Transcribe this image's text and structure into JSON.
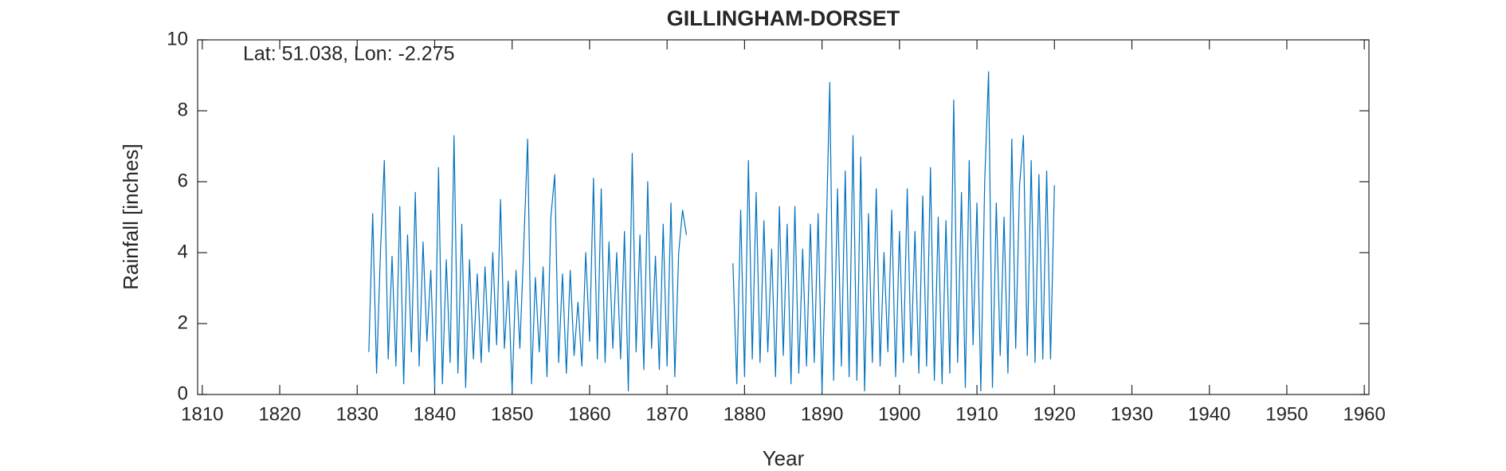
{
  "chart_data": {
    "type": "line",
    "title": "GILLINGHAM-DORSET",
    "annotation": "Lat: 51.038, Lon: -2.275",
    "x_label": "Year",
    "y_label": "Rainfall [inches]",
    "color": "#0072bd",
    "xlim": [
      1809.4,
      1960.6
    ],
    "ylim": [
      0,
      10
    ],
    "xticks": [
      1810,
      1820,
      1830,
      1840,
      1850,
      1860,
      1870,
      1880,
      1890,
      1900,
      1910,
      1920,
      1930,
      1940,
      1950,
      1960
    ],
    "yticks": [
      0,
      2,
      4,
      6,
      8,
      10
    ],
    "x": [
      1831.5,
      1832,
      1832.5,
      1833,
      1833.5,
      1834,
      1834.5,
      1835,
      1835.5,
      1836,
      1836.5,
      1837,
      1837.5,
      1838,
      1838.5,
      1839,
      1839.5,
      1840,
      1840.5,
      1841,
      1841.5,
      1842,
      1842.5,
      1843,
      1843.5,
      1844,
      1844.5,
      1845,
      1845.5,
      1846,
      1846.5,
      1847,
      1847.5,
      1848,
      1848.5,
      1849,
      1849.5,
      1850,
      1850.5,
      1851,
      1851.5,
      1852,
      1852.5,
      1853,
      1853.5,
      1854,
      1854.5,
      1855,
      1855.5,
      1856,
      1856.5,
      1857,
      1857.5,
      1858,
      1858.5,
      1859,
      1859.5,
      1860,
      1860.5,
      1861,
      1861.5,
      1862,
      1862.5,
      1863,
      1863.5,
      1864,
      1864.5,
      1865,
      1865.5,
      1866,
      1866.5,
      1867,
      1867.5,
      1868,
      1868.5,
      1869,
      1869.5,
      1870,
      1870.5,
      1871,
      1871.5,
      1872,
      1872.5,
      1875,
      1878.5,
      1879,
      1879.5,
      1880,
      1880.5,
      1881,
      1881.5,
      1882,
      1882.5,
      1883,
      1883.5,
      1884,
      1884.5,
      1885,
      1885.5,
      1886,
      1886.5,
      1887,
      1887.5,
      1888,
      1888.5,
      1889,
      1889.5,
      1890,
      1890.5,
      1891,
      1891.5,
      1892,
      1892.5,
      1893,
      1893.5,
      1894,
      1894.5,
      1895,
      1895.5,
      1896,
      1896.5,
      1897,
      1897.5,
      1898,
      1898.5,
      1899,
      1899.5,
      1900,
      1900.5,
      1901,
      1901.5,
      1902,
      1902.5,
      1903,
      1903.5,
      1904,
      1904.5,
      1905,
      1905.5,
      1906,
      1906.5,
      1907,
      1907.5,
      1908,
      1908.5,
      1909,
      1909.5,
      1910,
      1910.5,
      1911,
      1911.5,
      1912,
      1912.5,
      1913,
      1913.5,
      1914,
      1914.5,
      1915,
      1915.5,
      1916,
      1916.5,
      1917,
      1917.5,
      1918,
      1918.5,
      1919,
      1919.5,
      1920
    ],
    "values": [
      1.2,
      5.1,
      0.6,
      4.0,
      6.6,
      1.0,
      3.9,
      0.8,
      5.3,
      0.3,
      4.5,
      1.2,
      5.7,
      0.8,
      4.3,
      1.5,
      3.5,
      0.2,
      6.4,
      0.3,
      3.8,
      0.9,
      7.3,
      0.6,
      4.8,
      0.2,
      3.8,
      1.0,
      3.4,
      0.9,
      3.6,
      1.2,
      4.0,
      1.4,
      5.5,
      1.3,
      3.2,
      0.1,
      3.5,
      1.3,
      4.2,
      7.2,
      0.3,
      3.3,
      1.2,
      3.6,
      0.5,
      5.0,
      6.2,
      0.9,
      3.4,
      0.6,
      3.5,
      1.1,
      2.6,
      0.8,
      4.0,
      1.5,
      6.1,
      1.0,
      5.8,
      0.9,
      4.3,
      1.3,
      4.0,
      1.0,
      4.6,
      0.1,
      6.8,
      1.2,
      4.5,
      0.7,
      6.0,
      1.3,
      3.9,
      0.7,
      4.8,
      0.8,
      5.4,
      0.5,
      4.0,
      5.2,
      4.5,
      null,
      3.7,
      0.3,
      5.2,
      0.5,
      6.6,
      1.0,
      5.7,
      0.9,
      4.9,
      1.2,
      4.1,
      0.5,
      5.3,
      1.1,
      4.8,
      0.3,
      5.3,
      0.6,
      4.1,
      0.8,
      4.8,
      0.9,
      5.1,
      0.1,
      4.1,
      8.8,
      0.4,
      5.8,
      0.8,
      6.3,
      0.5,
      7.3,
      0.4,
      6.7,
      0.1,
      5.1,
      0.9,
      5.8,
      0.8,
      4.0,
      1.2,
      5.2,
      0.5,
      4.6,
      0.9,
      5.8,
      1.1,
      4.6,
      0.6,
      5.6,
      0.8,
      6.4,
      0.4,
      5.0,
      0.3,
      4.9,
      0.6,
      8.3,
      0.9,
      5.7,
      0.2,
      6.6,
      1.4,
      5.4,
      0.1,
      6.0,
      9.1,
      0.2,
      5.4,
      1.1,
      5.0,
      0.6,
      7.2,
      1.3,
      5.9,
      7.3,
      1.1,
      6.6,
      0.9,
      6.2,
      1.0,
      6.3,
      1.0,
      5.9
    ]
  }
}
